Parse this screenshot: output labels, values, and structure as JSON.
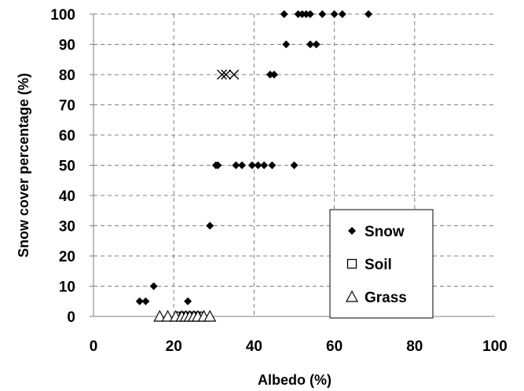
{
  "chart_data": {
    "type": "scatter",
    "title": "",
    "xlabel": "Albedo (%)",
    "ylabel": "Snow cover percentage (%)",
    "xlim": [
      0,
      100
    ],
    "ylim": [
      0,
      100
    ],
    "x_ticks": [
      0,
      20,
      40,
      60,
      80,
      100
    ],
    "y_ticks": [
      0,
      10,
      20,
      30,
      40,
      50,
      60,
      70,
      80,
      90,
      100
    ],
    "grid": true,
    "legend_position": "bottom-right",
    "series": [
      {
        "name": "Snow",
        "marker": "diamond",
        "color": "#000000",
        "points": [
          [
            11.5,
            5
          ],
          [
            13,
            5
          ],
          [
            23.5,
            5
          ],
          [
            15,
            10
          ],
          [
            29,
            30
          ],
          [
            30.5,
            50
          ],
          [
            31,
            50
          ],
          [
            35.5,
            50
          ],
          [
            37,
            50
          ],
          [
            39.5,
            50
          ],
          [
            41,
            50
          ],
          [
            42.5,
            50
          ],
          [
            44.5,
            50
          ],
          [
            50,
            50
          ],
          [
            44,
            80
          ],
          [
            45,
            80
          ],
          [
            48,
            90
          ],
          [
            54,
            90
          ],
          [
            55.5,
            90
          ],
          [
            47.5,
            100
          ],
          [
            51,
            100
          ],
          [
            52,
            100
          ],
          [
            53,
            100
          ],
          [
            54,
            100
          ],
          [
            57,
            100
          ],
          [
            60,
            100
          ],
          [
            62,
            100
          ],
          [
            68.5,
            100
          ]
        ]
      },
      {
        "name": "Soil",
        "marker": "square",
        "color": "#000000",
        "points": [
          [
            21.5,
            0
          ],
          [
            22.5,
            0
          ],
          [
            23.5,
            0
          ],
          [
            24.5,
            0
          ],
          [
            25.5,
            0
          ],
          [
            26.5,
            0
          ]
        ]
      },
      {
        "name": "Grass",
        "marker": "triangle",
        "color": "#000000",
        "points": [
          [
            16.5,
            0
          ],
          [
            18.5,
            0
          ],
          [
            20.5,
            0
          ],
          [
            22,
            0
          ],
          [
            23,
            0
          ],
          [
            24,
            0
          ],
          [
            25,
            0
          ],
          [
            26,
            0
          ],
          [
            27.5,
            0
          ],
          [
            29,
            0
          ]
        ]
      },
      {
        "name": "",
        "marker": "x",
        "color": "#000000",
        "points": [
          [
            32,
            80
          ],
          [
            33,
            80
          ],
          [
            35,
            80
          ]
        ]
      }
    ]
  }
}
